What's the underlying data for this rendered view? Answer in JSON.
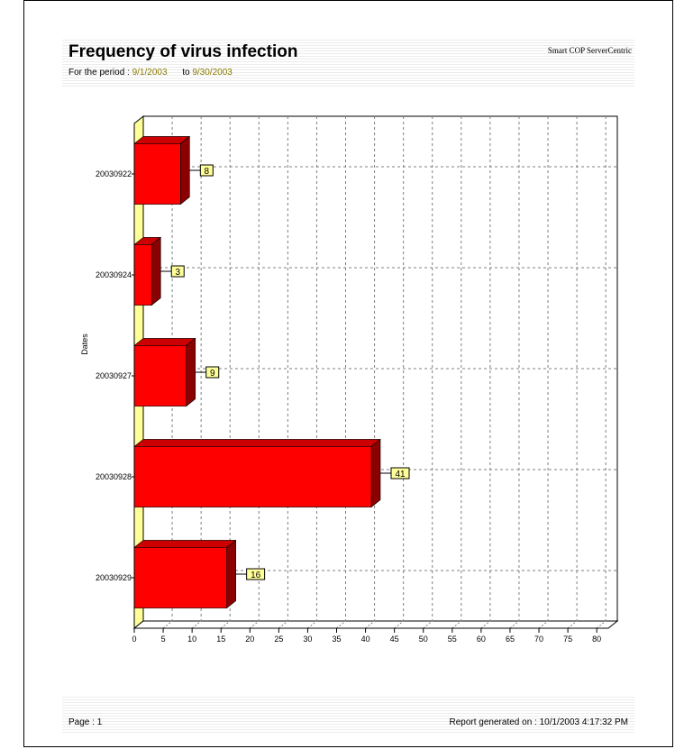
{
  "report": {
    "title": "Frequency of virus infection",
    "brand": "Smart COP  ServerCentric",
    "period_prefix": "For the period : ",
    "period_from": "9/1/2003",
    "period_to_label": "to",
    "period_to": "9/30/2003"
  },
  "footer": {
    "page_label": "Page : 1",
    "generated_label": "Report generated on : 10/1/2003 4:17:32 PM"
  },
  "colors": {
    "bar_front": "#ff0000",
    "bar_top": "#cc0000",
    "bar_side": "#8b0000",
    "wall": "#ffff99",
    "label_box": "#ffff99",
    "grid": "#808080"
  },
  "chart_data": {
    "type": "bar",
    "orientation": "horizontal",
    "three_d": true,
    "categories": [
      "20030922",
      "20030924",
      "20030927",
      "20030928",
      "20030929"
    ],
    "values": [
      8,
      3,
      9,
      41,
      16
    ],
    "ylabel": "Dates",
    "xlabel": "",
    "xlim": [
      0,
      82
    ],
    "xticks": [
      0,
      5,
      10,
      15,
      20,
      25,
      30,
      35,
      40,
      45,
      50,
      55,
      60,
      65,
      70,
      75,
      80
    ],
    "grid": true,
    "data_labels": true,
    "legend": "none"
  }
}
